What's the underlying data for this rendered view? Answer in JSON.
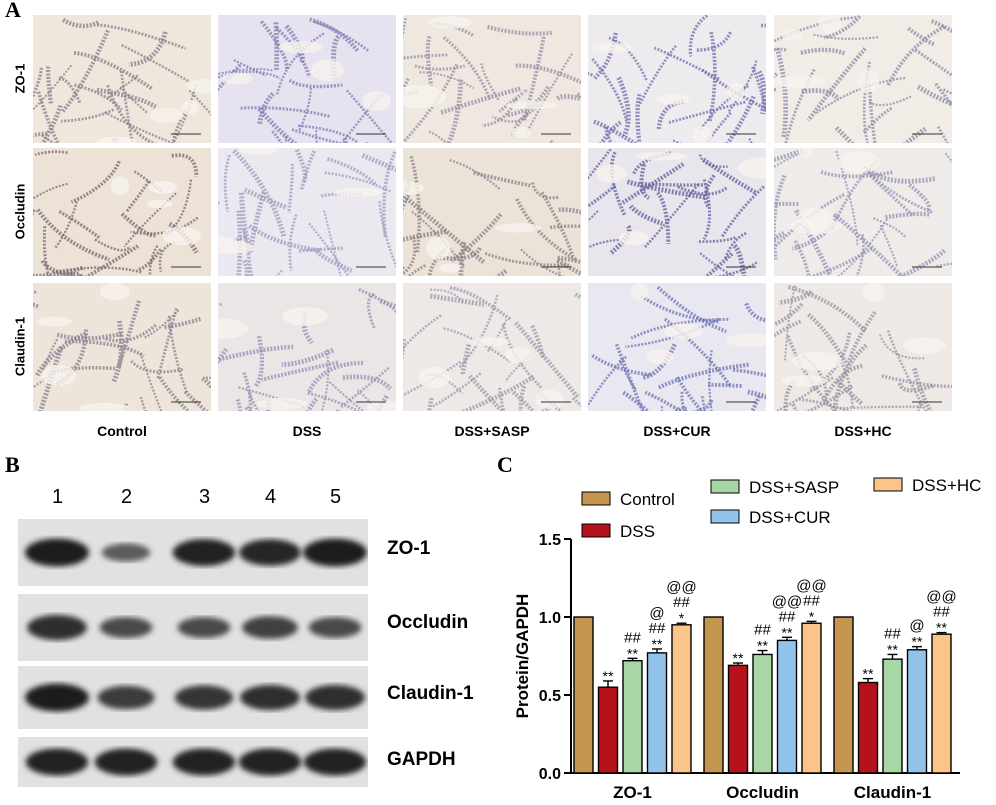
{
  "panelA": {
    "letter": "A",
    "rows": [
      "ZO-1",
      "Occludin",
      "Claudin-1"
    ],
    "columns": [
      "Control",
      "DSS",
      "DSS+SASP",
      "DSS+CUR",
      "DSS+HC"
    ]
  },
  "panelB": {
    "letter": "B",
    "lanes": [
      "1",
      "2",
      "3",
      "4",
      "5"
    ],
    "blots": [
      {
        "label": "ZO-1",
        "intensity": [
          1.0,
          0.45,
          0.95,
          0.92,
          1.0
        ]
      },
      {
        "label": "Occludin",
        "intensity": [
          0.85,
          0.6,
          0.6,
          0.7,
          0.6
        ]
      },
      {
        "label": "Claudin-1",
        "intensity": [
          1.0,
          0.75,
          0.8,
          0.85,
          0.85
        ]
      },
      {
        "label": "GAPDH",
        "intensity": [
          0.95,
          0.95,
          0.95,
          0.95,
          0.95
        ]
      }
    ]
  },
  "panelC": {
    "letter": "C"
  },
  "chart_data": {
    "type": "bar",
    "ylabel": "Protein/GAPDH",
    "ylim": [
      0,
      1.5
    ],
    "yticks": [
      "0.0",
      "0.5",
      "1.0",
      "1.5"
    ],
    "categories": [
      "ZO-1",
      "Occludin",
      "Claudin-1"
    ],
    "legend_position": "top",
    "series": [
      {
        "name": "Control",
        "color": "#c4964f",
        "values": [
          1.0,
          1.0,
          1.0
        ],
        "errors": [
          0,
          0,
          0
        ],
        "annotations": [
          [],
          [],
          []
        ]
      },
      {
        "name": "DSS",
        "color": "#b5121b",
        "values": [
          0.55,
          0.69,
          0.58
        ],
        "errors": [
          0.04,
          0.015,
          0.025
        ],
        "annotations": [
          [
            "**"
          ],
          [
            "**"
          ],
          [
            "**"
          ]
        ]
      },
      {
        "name": "DSS+SASP",
        "color": "#a7d7a4",
        "values": [
          0.72,
          0.76,
          0.73
        ],
        "errors": [
          0.015,
          0.025,
          0.03
        ],
        "annotations": [
          [
            "**",
            "##"
          ],
          [
            "**",
            "##"
          ],
          [
            "**",
            "##"
          ]
        ]
      },
      {
        "name": "DSS+CUR",
        "color": "#92c3ea",
        "values": [
          0.77,
          0.85,
          0.79
        ],
        "errors": [
          0.025,
          0.02,
          0.02
        ],
        "annotations": [
          [
            "**",
            "##",
            "@"
          ],
          [
            "**",
            "##",
            "@@"
          ],
          [
            "**",
            "@"
          ]
        ]
      },
      {
        "name": "DSS+HC",
        "color": "#fbc58a",
        "values": [
          0.95,
          0.96,
          0.89
        ],
        "errors": [
          0.01,
          0.012,
          0.01
        ],
        "annotations": [
          [
            "*",
            "##",
            "@@"
          ],
          [
            "*",
            "##",
            "@@"
          ],
          [
            "**",
            "##",
            "@@"
          ]
        ]
      }
    ]
  }
}
